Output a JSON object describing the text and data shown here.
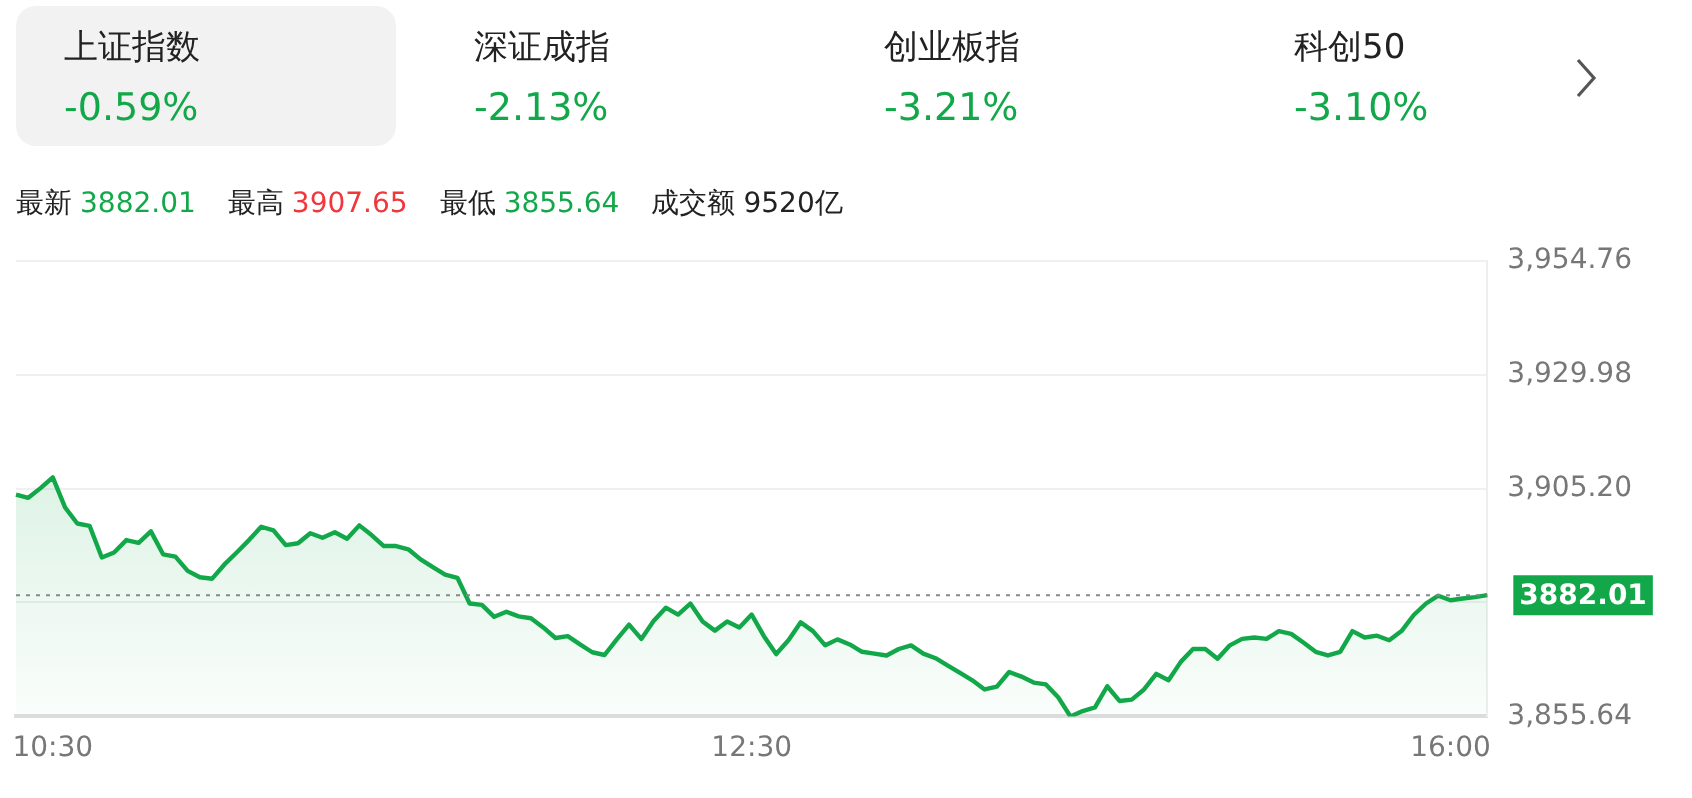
{
  "chart_data": {
    "type": "area",
    "categories": [
      null,
      null,
      null,
      "10:30",
      null,
      null,
      null,
      null,
      null,
      null,
      null,
      null,
      null,
      null,
      null,
      null,
      null,
      null,
      null,
      null,
      null,
      null,
      null,
      null,
      null,
      null,
      null,
      null,
      null,
      null,
      null,
      null,
      null,
      null,
      null,
      null,
      null,
      null,
      null,
      null,
      null,
      null,
      null,
      null,
      null,
      null,
      null,
      null,
      null,
      null,
      null,
      null,
      null,
      null,
      null,
      null,
      null,
      null,
      null,
      null,
      "12:30",
      null,
      null,
      null,
      null,
      null,
      null,
      null,
      null,
      null,
      null,
      null,
      null,
      null,
      null,
      null,
      null,
      null,
      null,
      null,
      null,
      null,
      null,
      null,
      null,
      null,
      null,
      null,
      null,
      null,
      null,
      null,
      null,
      null,
      null,
      null,
      null,
      null,
      null,
      null,
      null,
      null,
      null,
      null,
      null,
      null,
      null,
      null,
      null,
      null,
      null,
      null,
      null,
      null,
      null,
      null,
      null,
      "16:00",
      null,
      null,
      null
    ],
    "series": [
      {
        "color": "#12a84a",
        "values": [
          3903.9,
          3903.2,
          3905.3,
          3907.65,
          3901.1,
          3897.6,
          3897.1,
          3890.2,
          3891.3,
          3894.0,
          3893.4,
          3895.9,
          3890.9,
          3890.4,
          3887.3,
          3885.9,
          3885.6,
          3888.7,
          3891.3,
          3894.0,
          3896.9,
          3896.1,
          3892.9,
          3893.3,
          3895.5,
          3894.5,
          3895.7,
          3894.3,
          3897.2,
          3895.1,
          3892.7,
          3892.7,
          3892.0,
          3889.8,
          3888.1,
          3886.5,
          3885.8,
          3880.2,
          3879.9,
          3877.3,
          3878.4,
          3877.4,
          3877.0,
          3875.0,
          3872.7,
          3873.1,
          3871.3,
          3869.6,
          3869.0,
          3872.4,
          3875.6,
          3872.5,
          3876.4,
          3879.3,
          3877.8,
          3880.2,
          3876.3,
          3874.3,
          3876.3,
          3875.0,
          3877.8,
          3873.1,
          3869.2,
          3872.2,
          3876.1,
          3874.2,
          3871.1,
          3872.4,
          3871.3,
          3869.7,
          3869.3,
          3868.9,
          3870.3,
          3871.1,
          3869.3,
          3868.3,
          3866.7,
          3865.1,
          3863.5,
          3861.5,
          3862.1,
          3865.3,
          3864.3,
          3863.0,
          3862.6,
          3859.8,
          3855.64,
          3856.8,
          3857.6,
          3862.2,
          3859.0,
          3859.3,
          3861.5,
          3864.9,
          3863.5,
          3867.5,
          3870.3,
          3870.3,
          3868.2,
          3871.1,
          3872.5,
          3872.8,
          3872.5,
          3874.2,
          3873.6,
          3871.7,
          3869.7,
          3868.9,
          3869.7,
          3874.2,
          3872.8,
          3873.2,
          3872.2,
          3874.2,
          3877.7,
          3880.2,
          3881.9,
          3880.9,
          3881.3,
          3881.6,
          3882.01
        ]
      }
    ],
    "ylim": [
      3855.64,
      3954.76
    ],
    "yticks": [
      {
        "value": 3855.64,
        "label": "3,855.64"
      },
      {
        "value": 3880.42,
        "label": null
      },
      {
        "value": 3905.2,
        "label": "3,905.20"
      },
      {
        "value": 3929.98,
        "label": "3,929.98"
      },
      {
        "value": 3954.76,
        "label": "3,954.76"
      }
    ],
    "grid": "y",
    "legend": false,
    "marker": "none",
    "line_style": "solid",
    "ref_lines": [
      {
        "axis": "y",
        "value": 3882.01,
        "label": "3882.01",
        "color": "#888888",
        "line_style": "dotted"
      }
    ],
    "annotations": [
      "上证指数",
      "-0.59%",
      "深证成指",
      "-2.13%",
      "创业板指",
      "-3.21%",
      "科创50",
      "-3.10%",
      "最新",
      "3882.01",
      "最高",
      "3907.65",
      "最低",
      "3855.64",
      "成交额",
      "9520亿"
    ]
  }
}
